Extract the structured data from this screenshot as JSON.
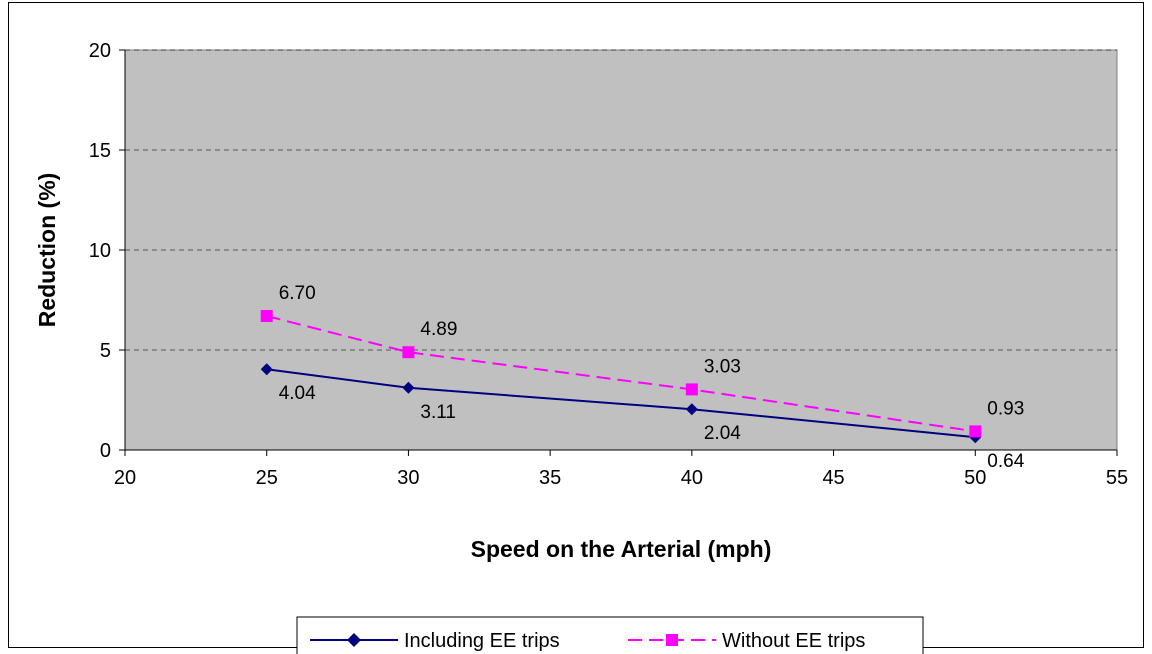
{
  "chart_data": {
    "type": "line",
    "title": "",
    "xlabel": "Speed on the Arterial (mph)",
    "ylabel": "Reduction (%)",
    "xlim": [
      20,
      55
    ],
    "ylim": [
      0,
      20
    ],
    "x_ticks": [
      "20",
      "25",
      "30",
      "35",
      "40",
      "45",
      "50",
      "55"
    ],
    "y_ticks": [
      "0",
      "5",
      "10",
      "15",
      "20"
    ],
    "grid": "horizontal dashed",
    "plot_background": "#c0c0c0",
    "legend_position": "bottom",
    "series": [
      {
        "name": "Including EE trips",
        "color": "#000080",
        "marker": "diamond",
        "line_style": "solid",
        "x": [
          25,
          30,
          40,
          50
        ],
        "y": [
          4.04,
          3.11,
          2.04,
          0.64
        ],
        "labels": [
          "4.04",
          "3.11",
          "2.04",
          "0.64"
        ]
      },
      {
        "name": "Without EE trips",
        "color": "#ff00ff",
        "marker": "square",
        "line_style": "dashed",
        "x": [
          25,
          30,
          40,
          50
        ],
        "y": [
          6.7,
          4.89,
          3.03,
          0.93
        ],
        "labels": [
          "6.70",
          "4.89",
          "3.03",
          "0.93"
        ]
      }
    ]
  }
}
